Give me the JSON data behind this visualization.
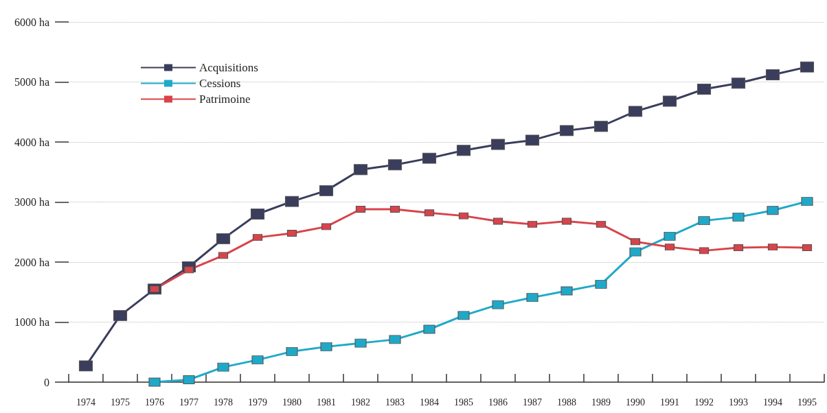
{
  "chart_data": {
    "type": "line",
    "categories": [
      "1974",
      "1975",
      "1976",
      "1977",
      "1978",
      "1979",
      "1980",
      "1981",
      "1982",
      "1983",
      "1984",
      "1985",
      "1986",
      "1987",
      "1988",
      "1989",
      "1990",
      "1991",
      "1992",
      "1993",
      "1994",
      "1995"
    ],
    "series": [
      {
        "name": "Acquisitions",
        "color": "#3a3d5c",
        "values": [
          270,
          1110,
          1550,
          1920,
          2390,
          2800,
          3010,
          3190,
          3540,
          3620,
          3730,
          3860,
          3960,
          4030,
          4190,
          4260,
          4510,
          4680,
          4880,
          4980,
          5120,
          5250
        ]
      },
      {
        "name": "Cessions",
        "color": "#1fa9c9",
        "values": [
          null,
          null,
          0,
          40,
          250,
          370,
          510,
          590,
          650,
          710,
          880,
          1110,
          1290,
          1410,
          1520,
          1630,
          2170,
          2430,
          2690,
          2750,
          2860,
          3010
        ]
      },
      {
        "name": "Patrimoine",
        "color": "#d9434a",
        "values": [
          null,
          null,
          1550,
          1870,
          2110,
          2410,
          2480,
          2590,
          2880,
          2880,
          2820,
          2770,
          2680,
          2630,
          2680,
          2630,
          2340,
          2250,
          2190,
          2240,
          2250,
          2240
        ]
      }
    ],
    "ylim": [
      0,
      6000
    ],
    "yticks": [
      0,
      {
        "value": 1000,
        "label": "1000 ha"
      },
      {
        "value": 2000,
        "label": "2000 ha"
      },
      {
        "value": 3000,
        "label": "3000 ha"
      },
      {
        "value": 4000,
        "label": "4000 ha"
      },
      {
        "value": 5000,
        "label": "5000 ha"
      },
      {
        "value": 6000,
        "label": "6000 ha"
      }
    ],
    "grid": "y",
    "legend": "top left",
    "marker": "square",
    "line_style": "solid"
  }
}
